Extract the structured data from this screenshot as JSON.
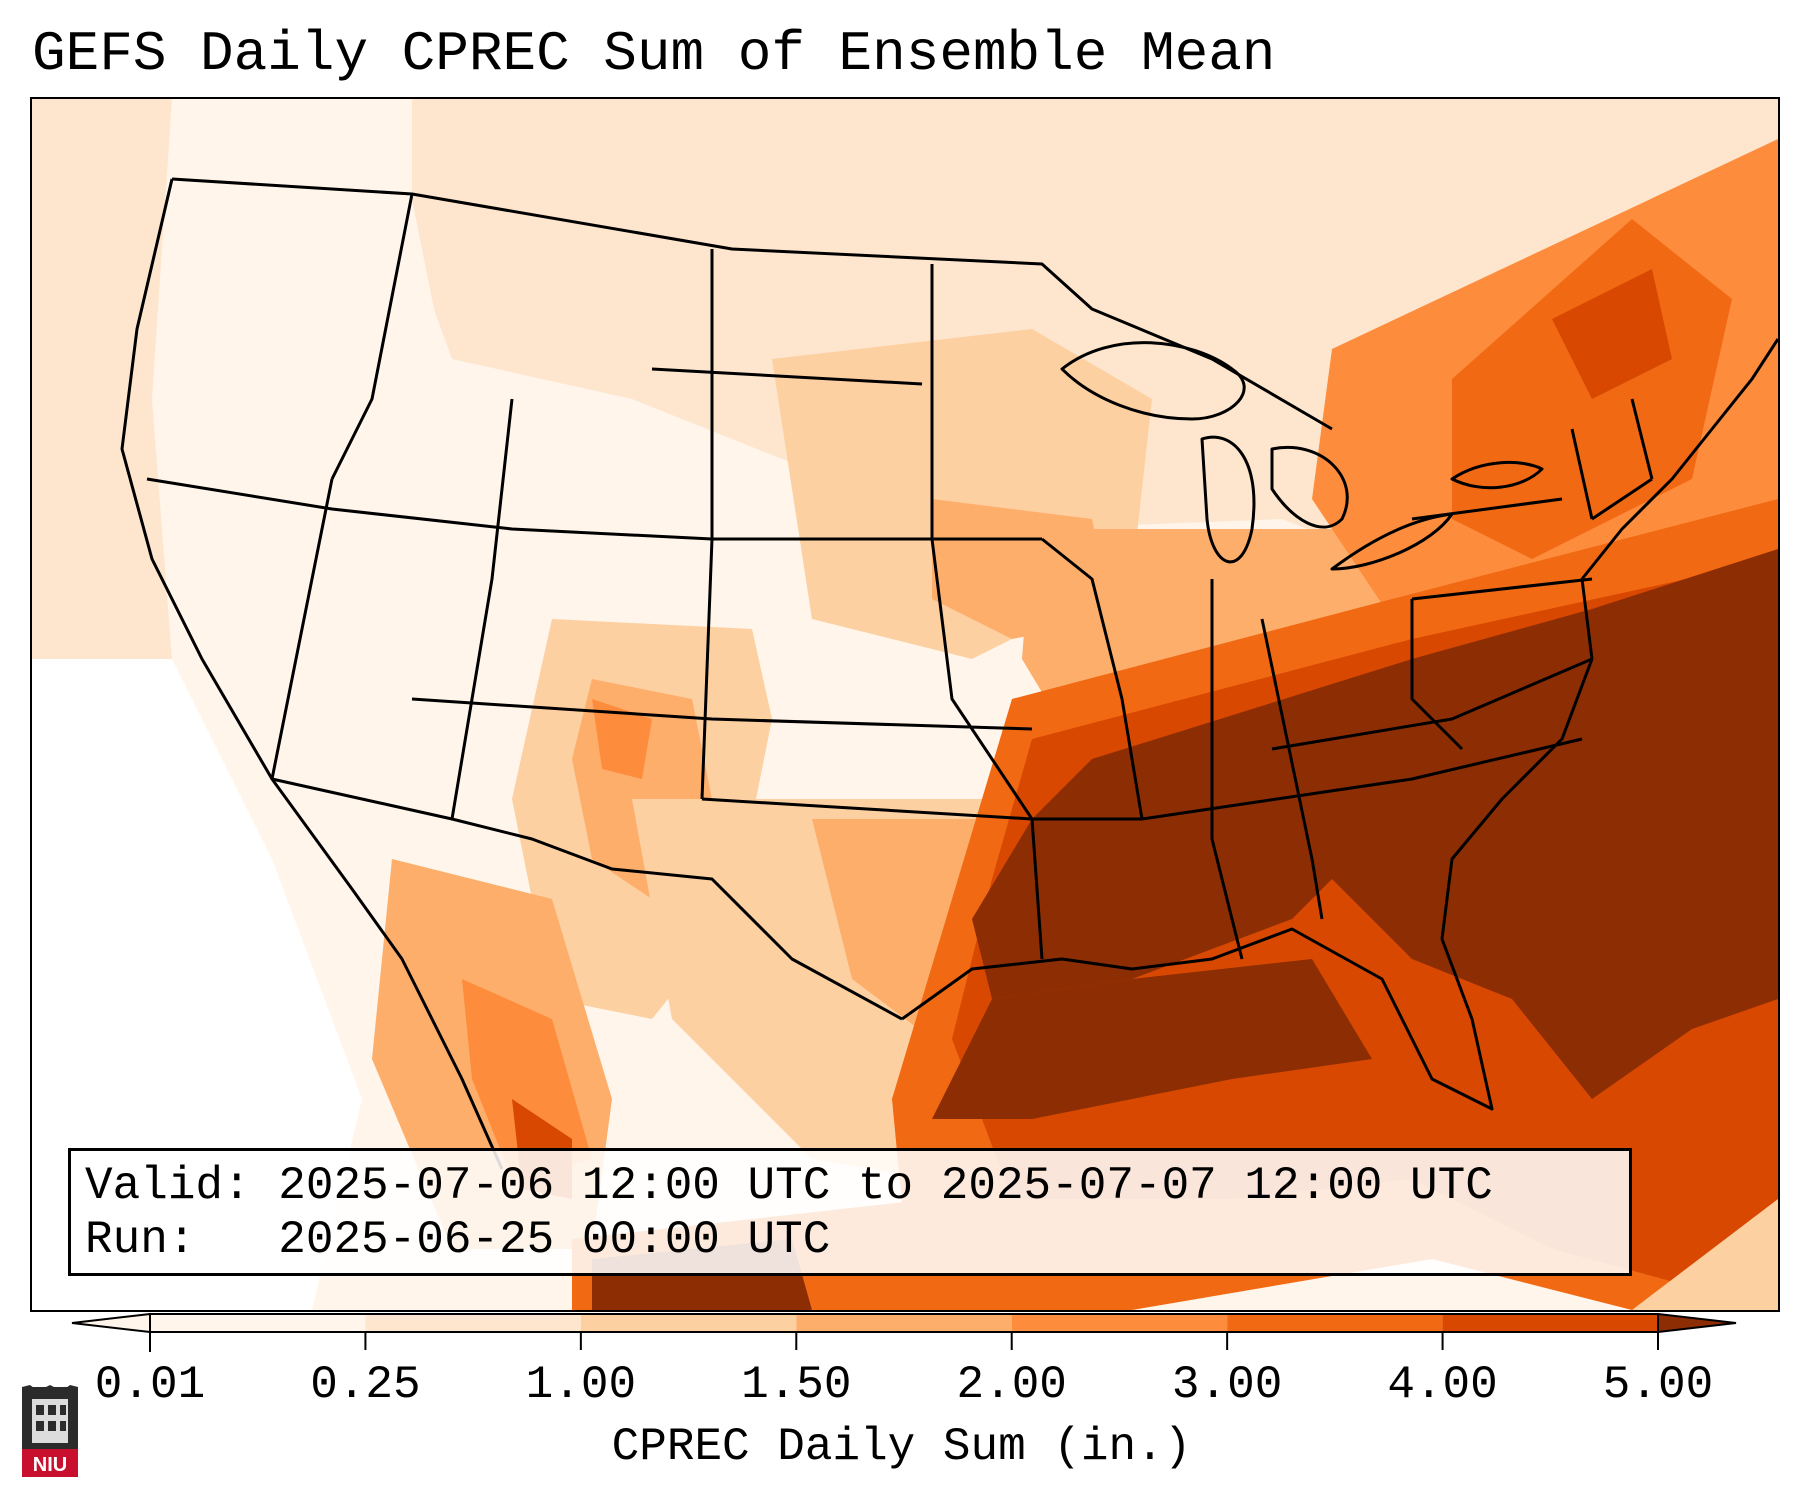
{
  "title": "GEFS Daily CPREC Sum of Ensemble Mean",
  "info": {
    "valid_line": "Valid: 2025-07-06 12:00 UTC to 2025-07-07 12:00 UTC",
    "run_line": "Run:   2025-06-25 00:00 UTC"
  },
  "colorbar": {
    "label": "CPREC Daily Sum (in.)",
    "ticks": [
      "0.01",
      "0.25",
      "1.00",
      "1.50",
      "2.00",
      "3.00",
      "4.00",
      "5.00"
    ],
    "colors": [
      "#fff5eb",
      "#fee6ce",
      "#fdd0a2",
      "#fdae6b",
      "#fd8d3c",
      "#f16913",
      "#d94801",
      "#8c2d04"
    ],
    "extend": "both"
  },
  "logo": {
    "text": "NIU",
    "color": "#c8102e"
  }
}
